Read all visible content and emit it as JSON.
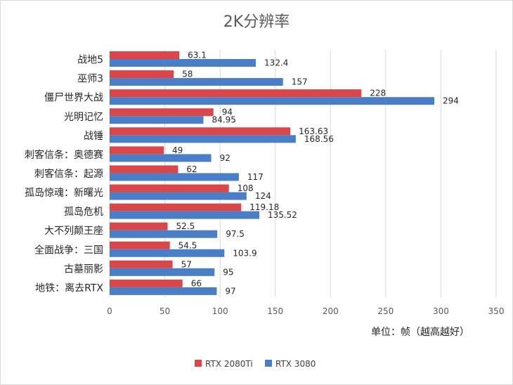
{
  "chart_data": {
    "type": "bar",
    "orientation": "horizontal",
    "title": "2K分辨率",
    "xlabel": "单位：帧（越高越好）",
    "ylabel": "",
    "xlim": [
      0,
      350
    ],
    "x_ticks": [
      0,
      50,
      100,
      150,
      200,
      250,
      300,
      350
    ],
    "grid": true,
    "legend_position": "bottom",
    "categories": [
      "战地5",
      "巫师3",
      "僵尸世界大战",
      "光明记忆",
      "战锤",
      "刺客信条：奥德赛",
      "刺客信条：起源",
      "孤岛惊魂：新曙光",
      "孤岛危机",
      "大不列颠王座",
      "全面战争：三国",
      "古墓丽影",
      "地铁：离去RTX"
    ],
    "series": [
      {
        "name": "RTX 2080Ti",
        "color": "#d9474b",
        "values": [
          63.1,
          58,
          228,
          94,
          163.63,
          49,
          62,
          108,
          119.18,
          52.5,
          54.5,
          57,
          66
        ],
        "labels": [
          "63.1",
          "58",
          "228",
          "94",
          "163.63",
          "49",
          "62",
          "108",
          "119.18",
          "52.5",
          "54.5",
          "57",
          "66"
        ]
      },
      {
        "name": "RTX 3080",
        "color": "#4a7fc7",
        "values": [
          132.4,
          157,
          294,
          84.95,
          168.56,
          92,
          117,
          124,
          135.52,
          97.5,
          103.9,
          95,
          97
        ],
        "labels": [
          "132.4",
          "157",
          "294",
          "84.95",
          "168.56",
          "92",
          "117",
          "124",
          "135.52",
          "97.5",
          "103.9",
          "95",
          "97"
        ]
      }
    ]
  }
}
